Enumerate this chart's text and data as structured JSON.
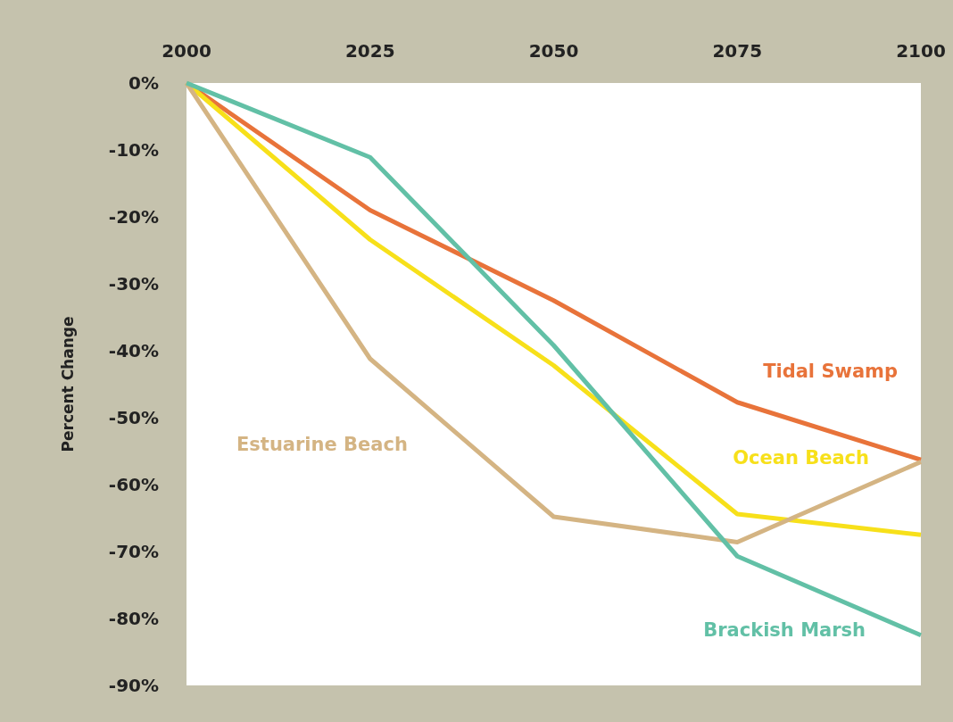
{
  "chart_data": {
    "type": "line",
    "ylabel": "Percent Change",
    "x": [
      2000,
      2025,
      2050,
      2075,
      2100
    ],
    "xlim": [
      2000,
      2100
    ],
    "xticks": [
      2000,
      2025,
      2050,
      2075,
      2100
    ],
    "ylim": [
      -90,
      0
    ],
    "yticks": [
      {
        "value": 0,
        "label": "0%"
      },
      {
        "value": -10,
        "label": "-10%"
      },
      {
        "value": -20,
        "label": "-20%"
      },
      {
        "value": -30,
        "label": "-30%"
      },
      {
        "value": -40,
        "label": "-40%"
      },
      {
        "value": -50,
        "label": "-50%"
      },
      {
        "value": -60,
        "label": "-60%"
      },
      {
        "value": -70,
        "label": "-70%"
      },
      {
        "value": -80,
        "label": "-80%"
      },
      {
        "value": -90,
        "label": "-90%"
      }
    ],
    "grid": false,
    "marker": "none",
    "line_style": "solid",
    "series": [
      {
        "name": "Tidal Swamp",
        "color": "#e8733a",
        "values": [
          0,
          -19,
          -32.5,
          -47.7,
          -56.3
        ]
      },
      {
        "name": "Ocean Beach",
        "color": "#f7e01a",
        "values": [
          0,
          -23.4,
          -42.2,
          -64.4,
          -67.5
        ]
      },
      {
        "name": "Estuarine Beach",
        "color": "#d4b483",
        "values": [
          0,
          -41.2,
          -64.8,
          -68.6,
          -56.6
        ]
      },
      {
        "name": "Brackish Marsh",
        "color": "#62c0a6",
        "values": [
          0,
          -11.1,
          -39.2,
          -70.7,
          -82.5
        ]
      }
    ]
  }
}
